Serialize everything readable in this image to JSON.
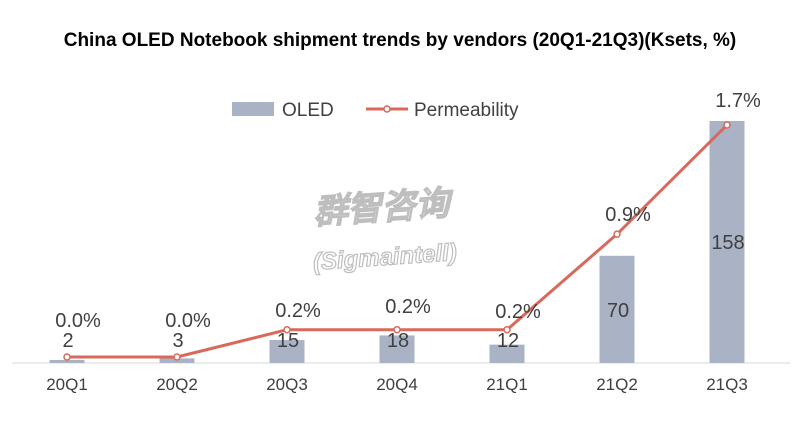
{
  "chart_data": {
    "type": "bar+line",
    "title": "China OLED Notebook shipment trends by vendors (20Q1-21Q3)(Ksets, %)",
    "categories": [
      "20Q1",
      "20Q2",
      "20Q3",
      "20Q4",
      "21Q1",
      "21Q2",
      "21Q3"
    ],
    "series": [
      {
        "name": "OLED",
        "type": "bar",
        "values": [
          2,
          3,
          15,
          18,
          12,
          70,
          158
        ],
        "labels": [
          "2",
          "3",
          "15",
          "18",
          "12",
          "70",
          "158"
        ],
        "color": "#aab3c6"
      },
      {
        "name": "Permeability",
        "type": "line",
        "values": [
          0.0,
          0.0,
          0.2,
          0.2,
          0.2,
          0.9,
          1.7
        ],
        "labels": [
          "0.0%",
          "0.0%",
          "0.2%",
          "0.2%",
          "0.2%",
          "0.9%",
          "1.7%"
        ],
        "color": "#d9695a"
      }
    ],
    "legend": {
      "position": "top",
      "items": [
        "OLED",
        "Permeability"
      ]
    },
    "watermark": {
      "lines": [
        "群智咨询",
        "(Sigmaintell)"
      ]
    }
  }
}
